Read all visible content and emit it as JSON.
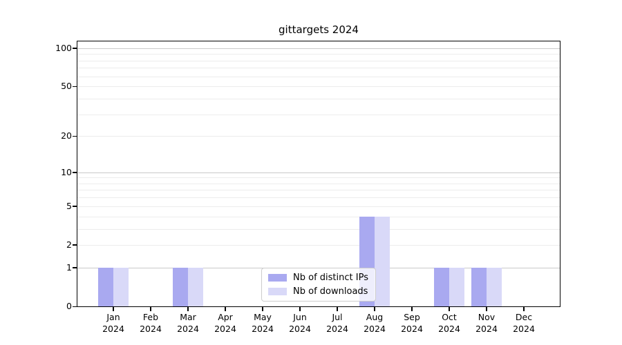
{
  "chart_data": {
    "type": "bar",
    "title": "gittargets 2024",
    "categories": [
      "Jan",
      "Feb",
      "Mar",
      "Apr",
      "May",
      "Jun",
      "Jul",
      "Aug",
      "Sep",
      "Oct",
      "Nov",
      "Dec"
    ],
    "year_label": "2024",
    "series": [
      {
        "name": "Nb of distinct IPs",
        "color": "#a9a9f0",
        "values": [
          1,
          0,
          1,
          0,
          0,
          0,
          0,
          4,
          0,
          1,
          1,
          0
        ]
      },
      {
        "name": "Nb of downloads",
        "color": "#d9d9f8",
        "values": [
          1,
          0,
          1,
          0,
          0,
          0,
          0,
          4,
          0,
          1,
          1,
          0
        ]
      }
    ],
    "xlabel": "",
    "ylabel": "",
    "yscale": "log1p",
    "ylim": [
      0,
      113
    ],
    "yticks": [
      0,
      1,
      2,
      5,
      10,
      20,
      50,
      100
    ],
    "minor_gridlines": [
      3,
      4,
      6,
      7,
      8,
      9,
      30,
      40,
      60,
      70,
      80,
      90
    ],
    "grid": "on",
    "legend_position": "lower center",
    "colors": {
      "decade_gridline": "#c9c9c9",
      "light_gridline": "#ececec",
      "axis": "#000000",
      "legend_border": "#cccccc",
      "background": "#ffffff"
    }
  }
}
